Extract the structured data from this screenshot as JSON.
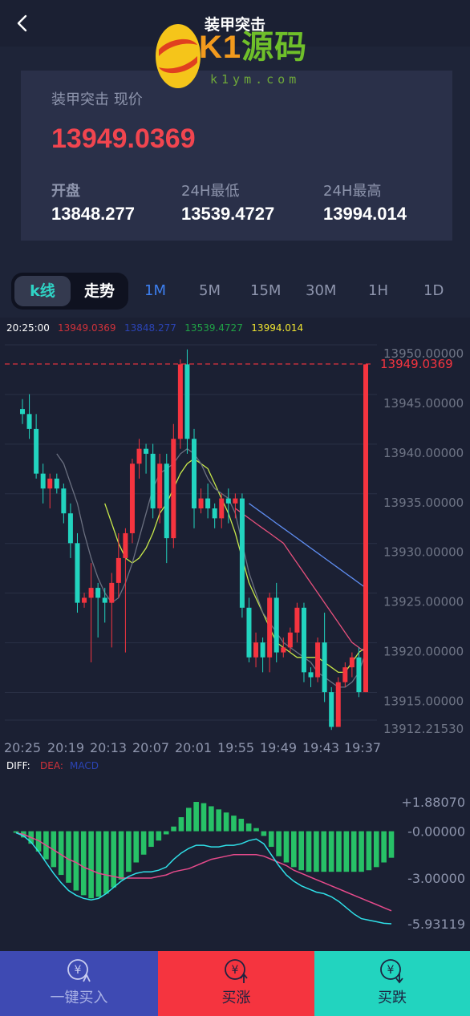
{
  "header": {
    "title": "装甲突击",
    "logo": {
      "brand_k1": "K1",
      "brand_cn": "源码",
      "url": "k1ym.com"
    }
  },
  "price_card": {
    "label": "装甲突击 现价",
    "current": "13949.0369",
    "stats": [
      {
        "label": "开盘",
        "value": "13848.277"
      },
      {
        "label": "24H最低",
        "value": "13539.4727"
      },
      {
        "label": "24H最高",
        "value": "13994.014"
      }
    ]
  },
  "tabs": {
    "view_toggle": {
      "kline": "k线",
      "trend": "走势",
      "active": "kline"
    },
    "periods": [
      "1M",
      "5M",
      "15M",
      "30M",
      "1H",
      "1D"
    ],
    "active_period": "1M"
  },
  "chart_data": [
    {
      "type": "candlestick",
      "legend": {
        "time": "20:25:00",
        "values": [
          "13949.0369",
          "13848.277",
          "13539.4727",
          "13994.014"
        ],
        "colors": [
          "#d0323a",
          "#2b44b5",
          "#20a246",
          "#f0e531"
        ]
      },
      "y_ticks": [
        "13950.00000",
        "13945.00000",
        "13940.00000",
        "13935.00000",
        "13930.00000",
        "13925.00000",
        "13920.00000",
        "13915.00000",
        "13912.21530"
      ],
      "current_price_label": "13949.0369",
      "x_ticks": [
        "20:25",
        "20:19",
        "20:13",
        "20:07",
        "20:01",
        "19:55",
        "19:49",
        "19:43",
        "19:37"
      ],
      "ylim": [
        13912.2153,
        13950.0
      ],
      "candles": [
        [
          13944.5,
          13944.0,
          13945.5,
          13943.0
        ],
        [
          13944.0,
          13942.5,
          13946.0,
          13941.5
        ],
        [
          13942.5,
          13938.0,
          13944.0,
          13937.5
        ],
        [
          13938.0,
          13936.5,
          13939.0,
          13935.0
        ],
        [
          13936.5,
          13937.5,
          13938.0,
          13934.5
        ],
        [
          13937.5,
          13936.5,
          13938.0,
          13936.0
        ],
        [
          13936.5,
          13934.0,
          13937.0,
          13933.0
        ],
        [
          13934.0,
          13931.0,
          13935.0,
          13929.5
        ],
        [
          13931.0,
          13925.0,
          13932.0,
          13924.0
        ],
        [
          13925.0,
          13925.5,
          13926.0,
          13924.5
        ],
        [
          13925.5,
          13926.5,
          13929.0,
          13919.0
        ],
        [
          13926.5,
          13925.5,
          13927.0,
          13921.5
        ],
        [
          13925.5,
          13925.0,
          13926.5,
          13923.0
        ],
        [
          13925.0,
          13927.0,
          13928.0,
          13920.5
        ],
        [
          13927.0,
          13929.5,
          13932.0,
          13925.5
        ],
        [
          13929.5,
          13932.0,
          13932.5,
          13920.0
        ],
        [
          13932.0,
          13939.0,
          13939.5,
          13931.0
        ],
        [
          13939.0,
          13940.5,
          13941.5,
          13937.5
        ],
        [
          13940.5,
          13940.0,
          13941.0,
          13938.0
        ],
        [
          13940.0,
          13934.5,
          13941.0,
          13933.5
        ],
        [
          13934.5,
          13939.0,
          13940.0,
          13933.0
        ],
        [
          13939.0,
          13931.5,
          13940.0,
          13929.0
        ],
        [
          13931.5,
          13941.5,
          13943.0,
          13930.5
        ],
        [
          13941.5,
          13949.0,
          13949.5,
          13940.5
        ],
        [
          13949.0,
          13941.5,
          13950.5,
          13940.0
        ],
        [
          13941.5,
          13934.5,
          13942.5,
          13932.5
        ],
        [
          13934.5,
          13935.5,
          13936.5,
          13934.0
        ],
        [
          13935.5,
          13934.5,
          13937.0,
          13933.5
        ],
        [
          13934.5,
          13933.5,
          13935.0,
          13932.5
        ],
        [
          13933.5,
          13935.5,
          13936.0,
          13932.5
        ],
        [
          13935.5,
          13935.0,
          13936.5,
          13933.0
        ],
        [
          13935.0,
          13935.5,
          13936.0,
          13933.5
        ],
        [
          13935.5,
          13924.5,
          13936.0,
          13923.5
        ],
        [
          13924.5,
          13919.5,
          13925.5,
          13919.0
        ],
        [
          13919.5,
          13921.0,
          13922.0,
          13918.5
        ],
        [
          13921.0,
          13919.5,
          13921.5,
          13918.0
        ],
        [
          13919.5,
          13925.5,
          13926.0,
          13918.0
        ],
        [
          13925.5,
          13920.0,
          13927.0,
          13919.0
        ],
        [
          13920.0,
          13920.5,
          13921.5,
          13919.5
        ],
        [
          13920.5,
          13922.0,
          13922.5,
          13920.0
        ],
        [
          13922.0,
          13924.5,
          13925.0,
          13921.0
        ],
        [
          13924.5,
          13918.0,
          13925.0,
          13917.0
        ],
        [
          13918.0,
          13917.5,
          13918.5,
          13916.5
        ],
        [
          13917.5,
          13921.0,
          13921.5,
          13917.0
        ],
        [
          13921.0,
          13916.0,
          13924.0,
          13915.0
        ],
        [
          13916.0,
          13912.5,
          13916.5,
          13912.2
        ],
        [
          13912.5,
          13917.0,
          13917.5,
          13912.5
        ],
        [
          13917.0,
          13918.5,
          13919.0,
          13916.5
        ],
        [
          13918.5,
          13919.5,
          13920.0,
          13917.5
        ],
        [
          13919.5,
          13916.0,
          13920.5,
          13915.5
        ],
        [
          13916.0,
          13949.0,
          13949.0,
          13916.0
        ]
      ],
      "ma_lines": [
        {
          "color": "#c8e84a",
          "values": [
            null,
            null,
            null,
            null,
            null,
            null,
            null,
            null,
            null,
            null,
            null,
            null,
            13935.0,
            13933.0,
            13931.0,
            13929.5,
            13929.0,
            13929.5,
            13930.5,
            13932.0,
            13934.0,
            13935.0,
            13936.5,
            13938.0,
            13939.0,
            13939.5,
            13939.0,
            13938.5,
            13937.0,
            13935.5,
            13934.0,
            13932.0,
            13929.5,
            13927.0,
            13925.5,
            13924.0,
            13922.5,
            13921.0,
            13920.5,
            13920.0,
            13919.5,
            13919.5,
            13919.5,
            13919.5,
            13919.0,
            13918.5,
            13918.0,
            13918.0,
            13919.0,
            13920.0,
            13920.5
          ]
        },
        {
          "color": "#5f8ef2",
          "values": [
            null,
            null,
            null,
            null,
            null,
            null,
            null,
            null,
            null,
            null,
            null,
            null,
            null,
            null,
            null,
            null,
            null,
            null,
            null,
            null,
            null,
            null,
            null,
            null,
            null,
            null,
            null,
            null,
            null,
            null,
            null,
            null,
            null,
            13935.0,
            13934.5,
            13934.0,
            13933.5,
            13933.0,
            13932.5,
            13932.0,
            13931.5,
            13931.0,
            13930.5,
            13930.0,
            13929.5,
            13929.0,
            13928.5,
            13928.0,
            13927.5,
            13927.0,
            13926.5
          ]
        },
        {
          "color": "#e7507c",
          "values": [
            null,
            null,
            null,
            null,
            null,
            null,
            null,
            null,
            null,
            null,
            null,
            null,
            null,
            null,
            null,
            null,
            null,
            null,
            null,
            null,
            null,
            null,
            null,
            null,
            null,
            null,
            null,
            null,
            null,
            null,
            null,
            13934.5,
            13934.0,
            13933.5,
            13933.0,
            13932.5,
            13932.0,
            13931.5,
            13931.0,
            13930.0,
            13929.0,
            13928.0,
            13927.0,
            13926.0,
            13925.0,
            13924.0,
            13923.0,
            13922.0,
            13921.0,
            13920.5,
            13920.0
          ]
        },
        {
          "color": "#6b7080",
          "values": [
            null,
            null,
            null,
            null,
            null,
            13940.0,
            13939.0,
            13937.0,
            13935.0,
            13932.0,
            13929.5,
            13927.5,
            13926.0,
            13925.0,
            13925.5,
            13927.0,
            13929.0,
            13931.5,
            13934.0,
            13936.5,
            13938.0,
            13938.5,
            13939.0,
            13940.0,
            13940.5,
            13940.0,
            13939.0,
            13937.5,
            13936.5,
            13936.0,
            13935.5,
            13934.0,
            13931.0,
            13928.0,
            13926.0,
            13924.0,
            13923.0,
            13922.0,
            13921.0,
            13920.5,
            13920.0,
            13919.5,
            13919.0,
            13918.0,
            13917.5,
            13917.0,
            13916.5,
            13916.5,
            13917.0,
            13918.0,
            13920.0
          ]
        }
      ]
    },
    {
      "type": "macd",
      "legend": {
        "diff": "DIFF:",
        "dea": "DEA:",
        "macd": "MACD"
      },
      "y_ticks": [
        "+1.88070",
        "-0.00000",
        "-3.00000",
        "-5.93119"
      ],
      "ylim": [
        -5.93119,
        1.8807
      ],
      "histogram": [
        -0.1,
        -0.4,
        -0.8,
        -1.3,
        -1.8,
        -2.3,
        -2.8,
        -3.3,
        -3.8,
        -4.1,
        -4.3,
        -4.2,
        -4.0,
        -3.6,
        -3.1,
        -2.6,
        -2.0,
        -1.5,
        -1.0,
        -0.6,
        -0.2,
        0.3,
        0.9,
        1.5,
        1.88,
        1.8,
        1.6,
        1.4,
        1.2,
        1.0,
        0.8,
        0.5,
        0.2,
        -0.3,
        -1.0,
        -1.6,
        -2.0,
        -2.3,
        -2.5,
        -2.6,
        -2.6,
        -2.6,
        -2.6,
        -2.6,
        -2.6,
        -2.6,
        -2.6,
        -2.5,
        -2.3,
        -2.0,
        -1.7
      ],
      "diff": [
        -0.1,
        -0.3,
        -0.7,
        -1.3,
        -2.0,
        -2.7,
        -3.3,
        -3.8,
        -4.1,
        -4.3,
        -4.4,
        -4.3,
        -4.0,
        -3.6,
        -3.2,
        -2.9,
        -2.7,
        -2.6,
        -2.6,
        -2.5,
        -2.3,
        -1.8,
        -1.4,
        -1.1,
        -0.9,
        -0.9,
        -1.0,
        -1.0,
        -0.9,
        -0.9,
        -0.8,
        -0.6,
        -0.5,
        -0.8,
        -1.5,
        -2.2,
        -2.8,
        -3.2,
        -3.5,
        -3.7,
        -3.9,
        -4.0,
        -4.2,
        -4.5,
        -4.9,
        -5.3,
        -5.6,
        -5.7,
        -5.8,
        -5.9,
        -5.93
      ],
      "dea": [
        -0.1,
        -0.2,
        -0.4,
        -0.6,
        -0.9,
        -1.2,
        -1.5,
        -1.8,
        -2.0,
        -2.3,
        -2.5,
        -2.7,
        -2.8,
        -2.9,
        -3.0,
        -3.0,
        -3.0,
        -3.0,
        -3.0,
        -2.9,
        -2.8,
        -2.6,
        -2.5,
        -2.4,
        -2.2,
        -2.0,
        -1.8,
        -1.7,
        -1.6,
        -1.5,
        -1.5,
        -1.5,
        -1.5,
        -1.6,
        -1.8,
        -2.0,
        -2.2,
        -2.5,
        -2.7,
        -2.9,
        -3.1,
        -3.3,
        -3.5,
        -3.7,
        -3.9,
        -4.1,
        -4.3,
        -4.5,
        -4.7,
        -4.9,
        -5.1
      ]
    }
  ],
  "bottom_bar": {
    "buy_label": "一键买入",
    "up_label": "买涨",
    "down_label": "买跌"
  },
  "colors": {
    "rise": "#f5343f",
    "fall": "#22d4bf",
    "accent": "#3d7ff0"
  }
}
